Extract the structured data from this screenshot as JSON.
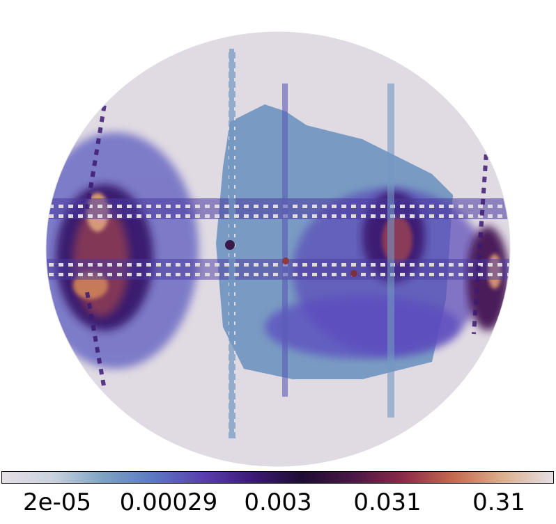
{
  "colormap": {
    "stops": [
      "#e6dfe6",
      "#c9d3df",
      "#7ea3c4",
      "#5b79c2",
      "#5a3fb0",
      "#3c1a74",
      "#1f0c33",
      "#4a1846",
      "#8a2a4a",
      "#c46a4e",
      "#dcb08e",
      "#e6dfe6"
    ],
    "outside_color": "#ffffff",
    "background_color": "#e0dae3"
  },
  "colorbar": {
    "tick_labels": [
      "2e-05",
      "0.00029",
      "0.003",
      "0.031",
      "0.31"
    ]
  }
}
